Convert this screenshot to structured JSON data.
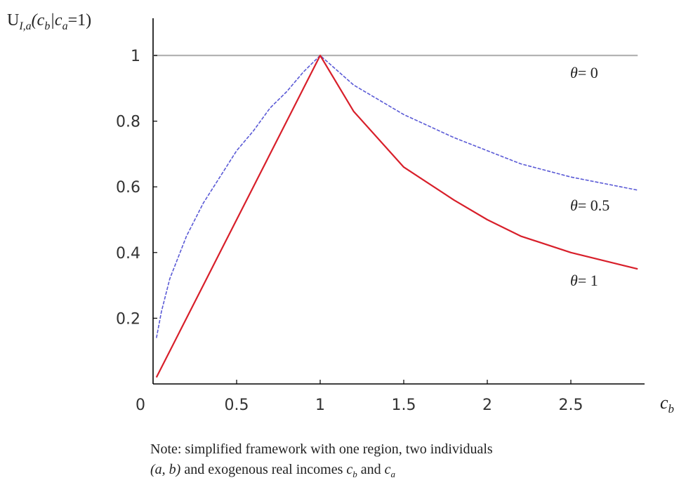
{
  "chart_data": {
    "type": "line",
    "ylabel": "U",
    "ylabel_sub": "I,a",
    "ylabel_rest_open": "(c",
    "ylabel_sub_b": "b",
    "ylabel_bar": "|c",
    "ylabel_sub_a": "a",
    "ylabel_rest_close": "=1)",
    "xlabel": "c",
    "xlabel_sub": "b",
    "xlim": [
      0,
      2.9
    ],
    "ylim": [
      0,
      1.05
    ],
    "xticks": [
      0,
      0.5,
      1,
      1.5,
      2,
      2.5
    ],
    "xtick_labels": [
      "0",
      "0.5",
      "1",
      "1.5",
      "2",
      "2.5"
    ],
    "yticks": [
      0,
      0.2,
      0.4,
      0.6,
      0.8,
      1
    ],
    "ytick_labels": [
      "0",
      "0.2",
      "0.4",
      "0.6",
      "0.8",
      "1"
    ],
    "series": [
      {
        "name": "θ= 0",
        "color": "#b3b3b3",
        "x": [
          0,
          0.5,
          1,
          1.5,
          2,
          2.5,
          2.9
        ],
        "y": [
          1,
          1,
          1,
          1,
          1,
          1,
          1
        ]
      },
      {
        "name": "θ= 0.5",
        "color": "#5a5ad6",
        "x": [
          0.02,
          0.05,
          0.1,
          0.2,
          0.3,
          0.4,
          0.5,
          0.6,
          0.7,
          0.8,
          0.9,
          1,
          1.2,
          1.5,
          1.8,
          2,
          2.2,
          2.5,
          2.9
        ],
        "y": [
          0.14,
          0.22,
          0.32,
          0.45,
          0.55,
          0.63,
          0.71,
          0.77,
          0.84,
          0.89,
          0.95,
          1,
          0.91,
          0.82,
          0.75,
          0.71,
          0.67,
          0.63,
          0.59
        ]
      },
      {
        "name": "θ= 1",
        "color": "#d81f2a",
        "x": [
          0.02,
          0.1,
          0.2,
          0.3,
          0.4,
          0.5,
          0.6,
          0.7,
          0.8,
          0.9,
          1,
          1.2,
          1.5,
          1.8,
          2,
          2.2,
          2.5,
          2.9
        ],
        "y": [
          0.02,
          0.1,
          0.2,
          0.3,
          0.4,
          0.5,
          0.6,
          0.7,
          0.8,
          0.9,
          1,
          0.83,
          0.66,
          0.56,
          0.5,
          0.45,
          0.4,
          0.35
        ]
      }
    ],
    "annotations": [
      {
        "theta": "θ",
        "rest": "= 0"
      },
      {
        "theta": "θ",
        "rest": "= 0.5"
      },
      {
        "theta": "θ",
        "rest": "= 1"
      }
    ]
  },
  "note": {
    "line1": "Note: simplified framework with one region, two individuals",
    "line2_a": "(a, b)",
    "line2_b": " and exogenous real incomes ",
    "line2_c": "c",
    "line2_c_sub": "b",
    "line2_d": " and ",
    "line2_e": "c",
    "line2_e_sub": "a"
  }
}
